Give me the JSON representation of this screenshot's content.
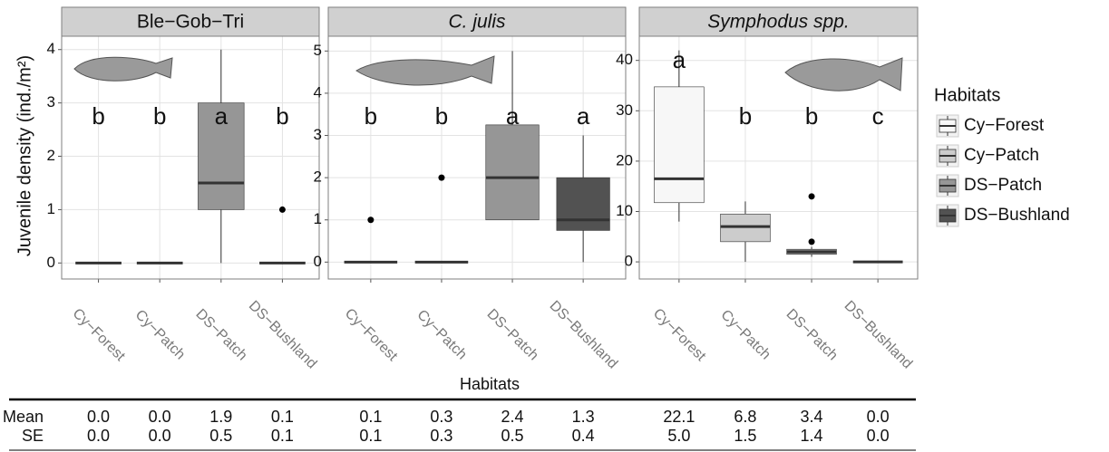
{
  "y_label": "Juvenile density (ind./m²)",
  "x_label": "Habitats",
  "legend": {
    "title": "Habitats",
    "items": [
      {
        "name": "Cy−Forest",
        "color": "#f7f7f7"
      },
      {
        "name": "Cy−Patch",
        "color": "#cccccc"
      },
      {
        "name": "DS−Patch",
        "color": "#969696"
      },
      {
        "name": "DS−Bushland",
        "color": "#525252"
      }
    ]
  },
  "chart_data": [
    {
      "type": "box",
      "title": "Ble−Gob−Tri",
      "title_style": "normal",
      "categories": [
        "Cy−Forest",
        "Cy−Patch",
        "DS−Patch",
        "DS−Bushland"
      ],
      "letters": [
        "b",
        "b",
        "a",
        "b"
      ],
      "boxes": [
        {
          "min": 0,
          "q1": 0,
          "median": 0,
          "q3": 0,
          "max": 0,
          "outliers": []
        },
        {
          "min": 0,
          "q1": 0,
          "median": 0,
          "q3": 0,
          "max": 0,
          "outliers": []
        },
        {
          "min": 0,
          "q1": 1,
          "median": 1.5,
          "q3": 3,
          "max": 4,
          "outliers": []
        },
        {
          "min": 0,
          "q1": 0,
          "median": 0,
          "q3": 0,
          "max": 0,
          "outliers": [
            1
          ]
        }
      ],
      "ylim": [
        -0.3,
        4.25
      ],
      "yticks": [
        0,
        1,
        2,
        3,
        4
      ],
      "grid": true
    },
    {
      "type": "box",
      "title": "C. julis",
      "title_style": "italic",
      "categories": [
        "Cy−Forest",
        "Cy−Patch",
        "DS−Patch",
        "DS−Bushland"
      ],
      "letters": [
        "b",
        "b",
        "a",
        "a"
      ],
      "boxes": [
        {
          "min": 0,
          "q1": 0,
          "median": 0,
          "q3": 0,
          "max": 0,
          "outliers": [
            1
          ]
        },
        {
          "min": 0,
          "q1": 0,
          "median": 0,
          "q3": 0,
          "max": 0,
          "outliers": [
            2
          ]
        },
        {
          "min": 1,
          "q1": 1,
          "median": 2,
          "q3": 3.25,
          "max": 5,
          "outliers": []
        },
        {
          "min": 0,
          "q1": 0.75,
          "median": 1,
          "q3": 2,
          "max": 3,
          "outliers": []
        }
      ],
      "ylim": [
        -0.4,
        5.35
      ],
      "yticks": [
        0,
        1,
        2,
        3,
        4,
        5
      ],
      "grid": true
    },
    {
      "type": "box",
      "title": "Symphodus spp.",
      "title_style": "italic",
      "categories": [
        "Cy−Forest",
        "Cy−Patch",
        "DS−Patch",
        "DS−Bushland"
      ],
      "letters": [
        "a",
        "b",
        "b",
        "c"
      ],
      "boxes": [
        {
          "min": 8,
          "q1": 11.75,
          "median": 16.5,
          "q3": 34.75,
          "max": 42,
          "outliers": []
        },
        {
          "min": 0,
          "q1": 4,
          "median": 7,
          "q3": 9.5,
          "max": 12,
          "outliers": []
        },
        {
          "min": 1,
          "q1": 1.5,
          "median": 2,
          "q3": 2.5,
          "max": 3,
          "outliers": [
            4,
            13
          ]
        },
        {
          "min": 0,
          "q1": 0,
          "median": 0,
          "q3": 0,
          "max": 0,
          "outliers": []
        }
      ],
      "ylim": [
        -3.4,
        44.8
      ],
      "yticks": [
        0,
        10,
        20,
        30,
        40
      ],
      "grid": true
    }
  ],
  "table": {
    "rows": [
      {
        "label": "Mean",
        "values": [
          [
            "0.0",
            "0.0",
            "1.9",
            "0.1"
          ],
          [
            "0.1",
            "0.3",
            "2.4",
            "1.3"
          ],
          [
            "22.1",
            "6.8",
            "3.4",
            "0.0"
          ]
        ]
      },
      {
        "label": "SE",
        "values": [
          [
            "0.0",
            "0.0",
            "0.5",
            "0.1"
          ],
          [
            "0.1",
            "0.3",
            "0.5",
            "0.4"
          ],
          [
            "5.0",
            "1.5",
            "1.4",
            "0.0"
          ]
        ]
      }
    ]
  }
}
